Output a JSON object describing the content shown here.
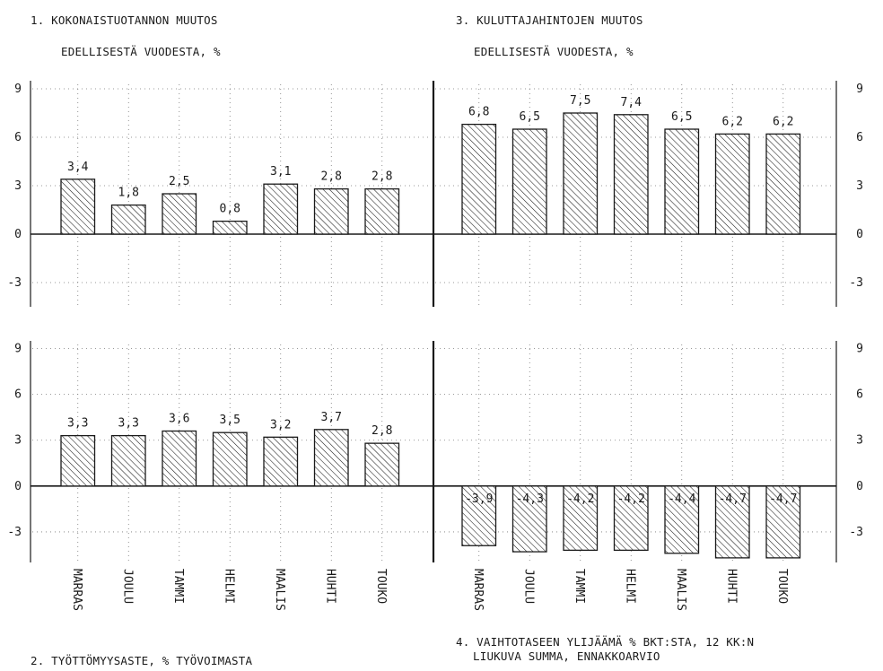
{
  "titles": {
    "t1_line1": "1. KOKONAISTUOTANNON MUUTOS",
    "t1_line2": "EDELLISESTÄ VUODESTA, %",
    "t3_line1": "3. KULUTTAJAHINTOJEN MUUTOS",
    "t3_line2": "EDELLISESTÄ VUODESTA, %",
    "t2_line1": "2. TYÖTTÖMYYSASTE, % TYÖVOIMASTA",
    "t4_line1": "4. VAIHTOTASEEN YLIJÄÄMÄ % BKT:STA, 12 KK:N",
    "t4_line2": "LIUKUVA SUMMA, ENNAKKOARVIO"
  },
  "chart_data": [
    {
      "type": "bar",
      "id": "panel1",
      "title": "1. KOKONAISTUOTANNON MUUTOS EDELLISESTÄ VUODESTA, %",
      "categories": [
        "MARRAS",
        "JOULU",
        "TAMMI",
        "HELMI",
        "MAALIS",
        "HUHTI",
        "TOUKO"
      ],
      "values": [
        3.4,
        1.8,
        2.5,
        0.8,
        3.1,
        2.8,
        2.8
      ],
      "value_labels": [
        "3,4",
        "1,8",
        "2,5",
        "0,8",
        "3,1",
        "2,8",
        "2,8"
      ],
      "ylim": [
        -4.5,
        9.5
      ],
      "yticks": [
        9,
        6,
        3,
        0,
        -3
      ],
      "ytick_labels": [
        "9",
        "6",
        "3",
        "0",
        "-3"
      ],
      "axis_side": "left",
      "grid": true,
      "bar_fill": "hatched"
    },
    {
      "type": "bar",
      "id": "panel3",
      "title": "3. KULUTTAJAHINTOJEN MUUTOS EDELLISESTÄ VUODESTA, %",
      "categories": [
        "MARRAS",
        "JOULU",
        "TAMMI",
        "HELMI",
        "MAALIS",
        "HUHTI",
        "TOUKO"
      ],
      "values": [
        6.8,
        6.5,
        7.5,
        7.4,
        6.5,
        6.2,
        6.2
      ],
      "value_labels": [
        "6,8",
        "6,5",
        "7,5",
        "7,4",
        "6,5",
        "6,2",
        "6,2"
      ],
      "ylim": [
        -4.5,
        9.5
      ],
      "yticks": [
        9,
        6,
        3,
        0,
        -3
      ],
      "ytick_labels": [
        "9",
        "6",
        "3",
        "0",
        "-3"
      ],
      "axis_side": "right",
      "grid": true,
      "bar_fill": "hatched"
    },
    {
      "type": "bar",
      "id": "panel2",
      "title": "2. TYÖTTÖMYYSASTE, % TYÖVOIMASTA",
      "categories": [
        "MARRAS",
        "JOULU",
        "TAMMI",
        "HELMI",
        "MAALIS",
        "HUHTI",
        "TOUKO"
      ],
      "values": [
        3.3,
        3.3,
        3.6,
        3.5,
        3.2,
        3.7,
        2.8
      ],
      "value_labels": [
        "3,3",
        "3,3",
        "3,6",
        "3,5",
        "3,2",
        "3,7",
        "2,8"
      ],
      "ylim": [
        -5,
        9.5
      ],
      "yticks": [
        9,
        6,
        3,
        0,
        -3
      ],
      "ytick_labels": [
        "9",
        "6",
        "3",
        "0",
        "-3"
      ],
      "axis_side": "left",
      "grid": true,
      "bar_fill": "hatched"
    },
    {
      "type": "bar",
      "id": "panel4",
      "title": "4. VAIHTOTASEEN YLIJÄÄMÄ % BKT:STA, 12 KK:N LIUKUVA SUMMA, ENNAKKOARVIO",
      "categories": [
        "MARRAS",
        "JOULU",
        "TAMMI",
        "HELMI",
        "MAALIS",
        "HUHTI",
        "TOUKO"
      ],
      "values": [
        -3.9,
        -4.3,
        -4.2,
        -4.2,
        -4.4,
        -4.7,
        -4.7
      ],
      "value_labels": [
        "-3,9",
        "-4,3",
        "-4,2",
        "-4,2",
        "-4,4",
        "-4,7",
        "-4,7"
      ],
      "ylim": [
        -5,
        9.5
      ],
      "yticks": [
        9,
        6,
        3,
        0,
        -3
      ],
      "ytick_labels": [
        "9",
        "6",
        "3",
        "0",
        "-3"
      ],
      "axis_side": "right",
      "grid": true,
      "bar_fill": "hatched"
    }
  ]
}
